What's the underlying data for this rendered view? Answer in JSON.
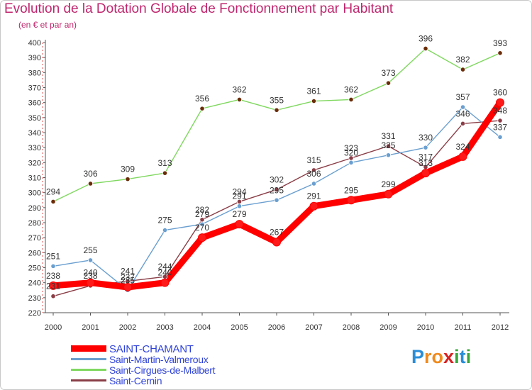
{
  "title": "Evolution de la Dotation Globale de Fonctionnement par Habitant",
  "subtitle": "(en € et par an)",
  "chart_data": {
    "type": "line",
    "title": "Evolution de la Dotation Globale de Fonctionnement par Habitant",
    "subtitle": "(en € et par an)",
    "xlabel": "",
    "ylabel": "",
    "x": [
      "2000",
      "2001",
      "2002",
      "2003",
      "2004",
      "2005",
      "2006",
      "2007",
      "2008",
      "2009",
      "2010",
      "2011",
      "2012"
    ],
    "ylim": [
      220,
      400
    ],
    "yticks": [
      220,
      230,
      240,
      250,
      260,
      270,
      280,
      290,
      300,
      310,
      320,
      330,
      340,
      350,
      360,
      370,
      380,
      390,
      400
    ],
    "grid": false,
    "legend_position": "bottom-left",
    "series": [
      {
        "name": "Saint-Cirgues-de-Malbert",
        "color": "#80d860",
        "marker": "#6a2c08",
        "values": [
          294,
          306,
          309,
          313,
          356,
          362,
          355,
          361,
          362,
          373,
          396,
          382,
          393
        ],
        "labels": [
          "294",
          "306",
          "309",
          "313",
          "356",
          "362",
          "355",
          "361",
          "362",
          "373",
          "396",
          "382",
          "393"
        ]
      },
      {
        "name": "Saint-Cernin",
        "color": "#8a3d46",
        "values": [
          231,
          238,
          241,
          244,
          282,
          294,
          302,
          315,
          323,
          331,
          317,
          346,
          348
        ],
        "labels": [
          "231",
          "238",
          "241",
          "244",
          "282",
          "294",
          "302",
          "315",
          "323",
          "331",
          "317",
          "346",
          "348"
        ]
      },
      {
        "name": "Saint-Martin-Valmeroux",
        "color": "#6a9fd0",
        "values": [
          251,
          255,
          235,
          275,
          279,
          291,
          295,
          306,
          320,
          325,
          330,
          357,
          337
        ],
        "labels": [
          "251",
          "255",
          "235",
          "275",
          "279",
          "291",
          "295",
          "306",
          "320",
          "325",
          "330",
          "357",
          "337"
        ]
      },
      {
        "name": "SAINT-CHAMANT",
        "color": "#ff0000",
        "values": [
          238,
          240,
          237,
          240,
          270,
          279,
          267,
          291,
          295,
          299,
          313,
          324,
          360
        ],
        "labels": [
          "238",
          "240",
          "237",
          "240",
          "270",
          "279",
          "267",
          "291",
          "295",
          "299",
          "313",
          "324",
          "360"
        ]
      }
    ]
  },
  "legend": [
    {
      "label": "SAINT-CHAMANT",
      "color": "#ff0000"
    },
    {
      "label": "Saint-Martin-Valmeroux",
      "color": "#6a9fd0"
    },
    {
      "label": "Saint-Cirgues-de-Malbert",
      "color": "#80d860"
    },
    {
      "label": "Saint-Cernin",
      "color": "#8a3d46"
    }
  ],
  "logo": {
    "text": "Proxiti",
    "letters": [
      "P",
      "r",
      "o",
      "x",
      "i",
      "t",
      "i"
    ],
    "colors": [
      "#2a8ed8",
      "#f08a1c",
      "#f08a1c",
      "#d82020",
      "#36a838",
      "#2a8ed8",
      "#36a838"
    ]
  }
}
